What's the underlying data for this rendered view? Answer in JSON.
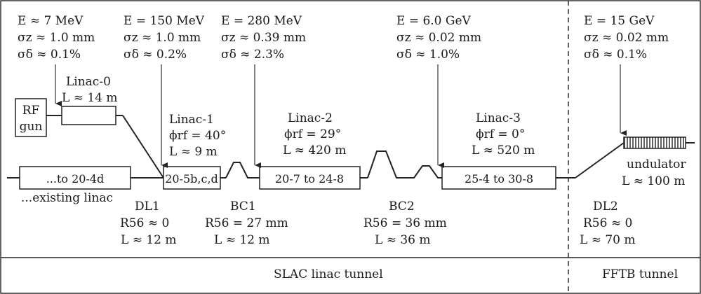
{
  "upstream": {
    "e1": "E ≈ 7 MeV",
    "sz1": "σz ≈ 1.0 mm",
    "sd1": "σδ ≈ 0.1%",
    "e2": "E = 150 MeV",
    "sz2": "σz ≈ 1.0 mm",
    "sd2": "σδ ≈ 0.2%",
    "e3": "E = 280 MeV",
    "sz3": "σz ≈ 0.39 mm",
    "sd3": "σδ ≈ 2.3%",
    "e4": "E = 6.0 GeV",
    "sz4": "σz ≈ 0.02 mm",
    "sd4": "σδ ≈ 1.0%",
    "e5": "E = 15 GeV",
    "sz5": "σz ≈ 0.02 mm",
    "sd5": "σδ ≈ 0.1%"
  },
  "components": {
    "rf_gun": [
      "RF",
      "gun"
    ],
    "linac0": {
      "name": "Linac-0",
      "length": "L ≈ 14 m"
    },
    "linac1": {
      "name": "Linac-1",
      "phase": "ϕrf = 40°",
      "length": "L ≈ 9 m"
    },
    "linac2": {
      "name": "Linac-2",
      "phase": "ϕrf = 29°",
      "length": "L ≈ 420 m"
    },
    "linac3": {
      "name": "Linac-3",
      "phase": "ϕrf = 0°",
      "length": "L ≈ 520 m"
    },
    "box_existing": "...to 20-4d",
    "box_l1": "20-5b,c,d",
    "box_l2": "20-7 to 24-8",
    "box_l3": "25-4 to 30-8",
    "existing_linac": "...existing linac",
    "undulator": {
      "name": "undulator",
      "length": "L ≈ 100 m"
    }
  },
  "bends": {
    "dl1": {
      "name": "DL1",
      "r56": "R56 ≈ 0",
      "length": "L ≈ 12 m"
    },
    "bc1": {
      "name": "BC1",
      "r56": "R56 = 27 mm",
      "length": "L ≈ 12 m"
    },
    "bc2": {
      "name": "BC2",
      "r56": "R56 = 36 mm",
      "length": "L ≈ 36 m"
    },
    "dl2": {
      "name": "DL2",
      "r56": "R56 ≈ 0",
      "length": "L ≈ 70 m"
    }
  },
  "tunnels": {
    "slac": "SLAC linac tunnel",
    "fftb": "FFTB tunnel"
  }
}
